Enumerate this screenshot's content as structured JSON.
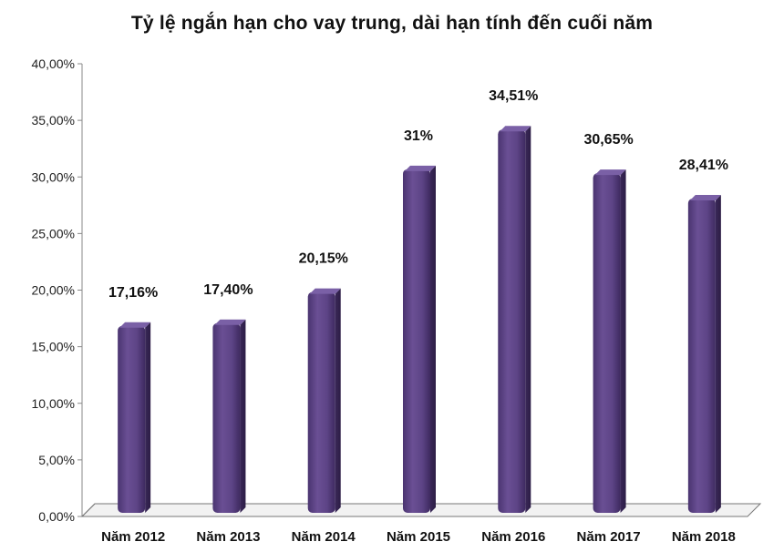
{
  "chart_data": {
    "type": "bar",
    "title": "Tỷ lệ ngắn hạn cho vay trung, dài hạn tính đến cuối năm",
    "xlabel": "",
    "ylabel": "",
    "categories": [
      "Năm 2012",
      "Năm 2013",
      "Năm 2014",
      "Năm 2015",
      "Năm 2016",
      "Năm 2017",
      "Năm 2018"
    ],
    "values": [
      17.16,
      17.4,
      20.15,
      31.0,
      34.51,
      30.65,
      28.41
    ],
    "data_labels": [
      "17,16%",
      "17,40%",
      "20,15%",
      "31%",
      "34,51%",
      "30,65%",
      "28,41%"
    ],
    "ylim": [
      0,
      40
    ],
    "yticks": [
      0,
      5,
      10,
      15,
      20,
      25,
      30,
      35,
      40
    ],
    "ytick_labels": [
      "0,00%",
      "5,00%",
      "10,00%",
      "15,00%",
      "20,00%",
      "25,00%",
      "30,00%",
      "35,00%",
      "40,00%"
    ],
    "bar_color": "#5e4585",
    "grid": false,
    "legend": "none"
  }
}
